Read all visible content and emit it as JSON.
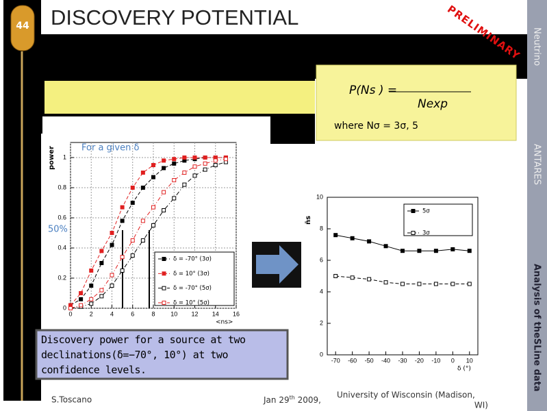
{
  "slide_number": "44",
  "title": "DISCOVERY POTENTIAL",
  "stamp": "PRELIMINARY",
  "sidebar": [
    "Neutrino",
    "ANTARES",
    "Analysis of theSLine data"
  ],
  "formula": {
    "lhs": "P(Ns ) =",
    "denominator": "Nexp",
    "note": "where Nσ = 3σ, 5"
  },
  "annotation": "For a given  δ",
  "level_label": "50%",
  "caption": "Discovery power for a source at two declinations(δ=−70°, 10°)  at two confidence levels.",
  "footer": {
    "author": "S.Toscano",
    "date": [
      "Jan 29",
      "th",
      " 2009,"
    ],
    "venue": [
      "University of Wisconsin  (Madison,",
      "WI)"
    ]
  },
  "chart_data": [
    {
      "type": "line",
      "xlabel": "<ns>",
      "ylabel": "power",
      "x": [
        0,
        1,
        2,
        3,
        4,
        5,
        6,
        7,
        8,
        9,
        10,
        11,
        12,
        13,
        14,
        15
      ],
      "xlim": [
        0,
        16
      ],
      "xticks": [
        0,
        2,
        4,
        6,
        8,
        10,
        12,
        14,
        16
      ],
      "ylim": [
        0,
        1.1
      ],
      "yticks": [
        0,
        0.2,
        0.4,
        0.6,
        0.8,
        1
      ],
      "grid": true,
      "series": [
        {
          "name": "δ = -70° (3σ)",
          "color": "#000000",
          "marker": "filled",
          "linestyle": "dashed",
          "values": [
            0.02,
            0.06,
            0.15,
            0.3,
            0.42,
            0.58,
            0.7,
            0.8,
            0.87,
            0.93,
            0.96,
            0.98,
            0.99,
            1,
            1,
            1
          ]
        },
        {
          "name": "δ = 10° (3σ)",
          "color": "#e02020",
          "marker": "filled",
          "linestyle": "dashed",
          "values": [
            0.02,
            0.1,
            0.25,
            0.38,
            0.5,
            0.67,
            0.8,
            0.9,
            0.95,
            0.98,
            0.99,
            1,
            1,
            1,
            1,
            1
          ]
        },
        {
          "name": "δ = -70° (5σ)",
          "color": "#000000",
          "marker": "open",
          "linestyle": "dashdot",
          "values": [
            0,
            0.01,
            0.03,
            0.08,
            0.15,
            0.25,
            0.35,
            0.45,
            0.55,
            0.65,
            0.73,
            0.82,
            0.88,
            0.92,
            0.95,
            0.97
          ]
        },
        {
          "name": "δ = 10° (5σ)",
          "color": "#e02020",
          "marker": "open",
          "linestyle": "dashdot",
          "values": [
            0,
            0.02,
            0.06,
            0.12,
            0.22,
            0.34,
            0.45,
            0.58,
            0.67,
            0.77,
            0.85,
            0.9,
            0.94,
            0.96,
            0.98,
            0.99
          ]
        }
      ]
    },
    {
      "type": "line",
      "xlabel": "δ (°)",
      "ylabel": "n̄s",
      "x": [
        -70,
        -60,
        -50,
        -40,
        -30,
        -20,
        -10,
        0,
        10
      ],
      "xlim": [
        -75,
        15
      ],
      "xticks": [
        -70,
        -60,
        -50,
        -40,
        -30,
        -20,
        -10,
        0,
        10
      ],
      "ylim": [
        0,
        10
      ],
      "yticks": [
        0,
        2,
        4,
        6,
        8,
        10
      ],
      "grid": false,
      "series": [
        {
          "name": "5σ",
          "color": "#000000",
          "marker": "filled",
          "linestyle": "solid",
          "values": [
            7.6,
            7.4,
            7.2,
            6.9,
            6.6,
            6.6,
            6.6,
            6.7,
            6.6
          ]
        },
        {
          "name": "3σ",
          "color": "#000000",
          "marker": "open",
          "linestyle": "dashed",
          "values": [
            5.0,
            4.9,
            4.8,
            4.6,
            4.5,
            4.5,
            4.5,
            4.5,
            4.5
          ]
        }
      ]
    }
  ]
}
